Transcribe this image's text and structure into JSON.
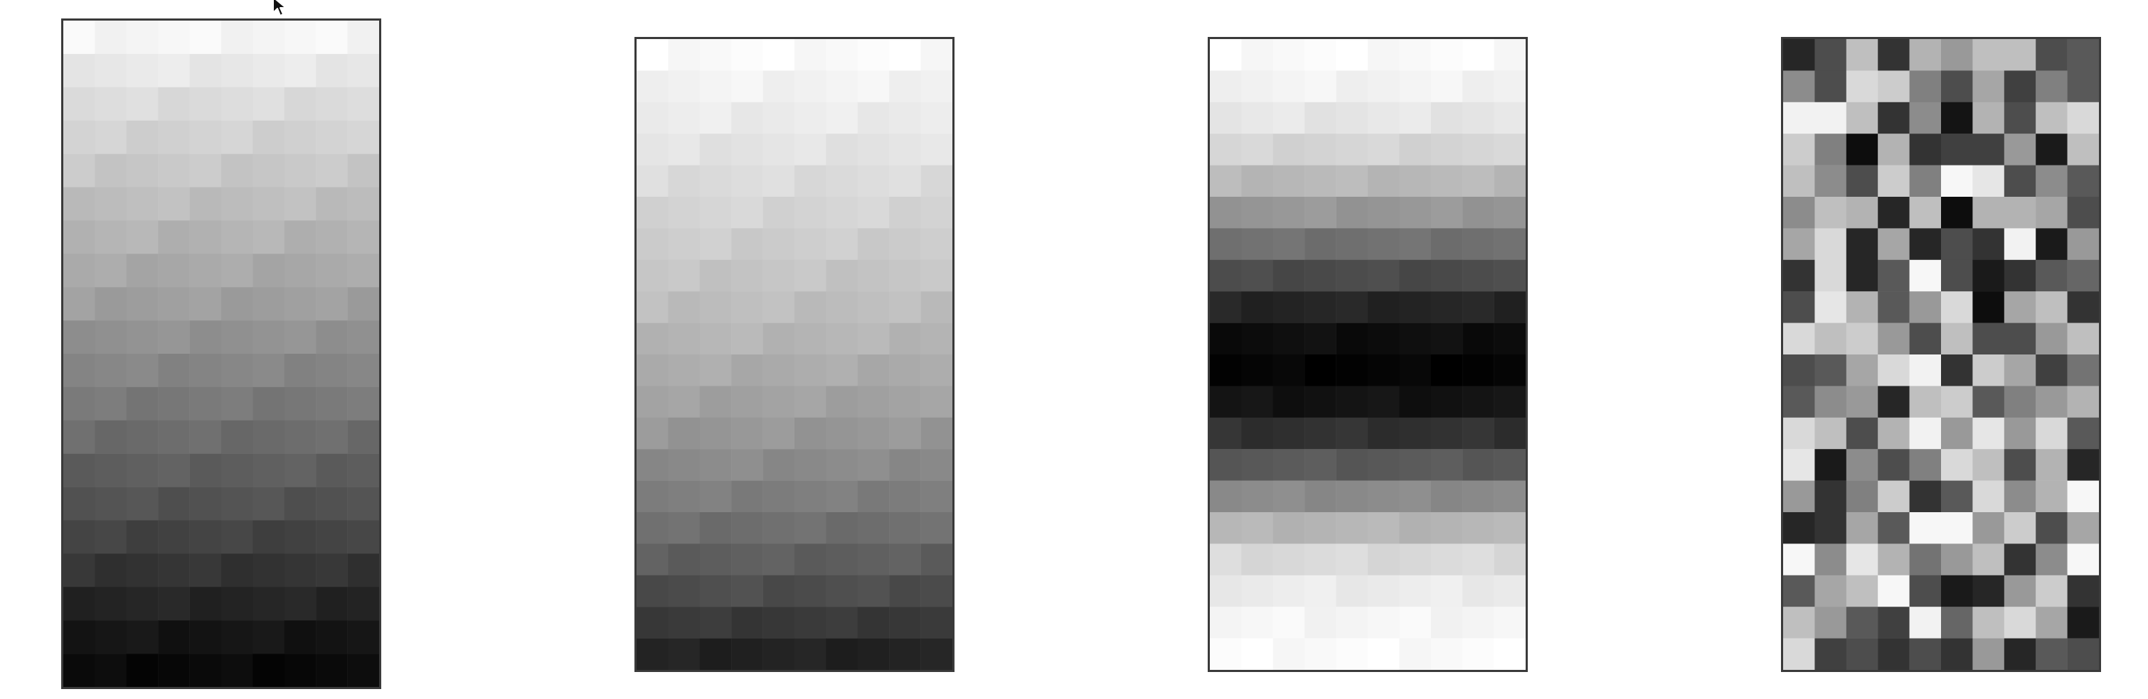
{
  "chart_data": [
    {
      "type": "heatmap",
      "colormap": "grayscale",
      "rows": 20,
      "cols": 10,
      "pattern": "vertical-gradient-light-to-dark",
      "row_levels": [
        0.97,
        0.92,
        0.87,
        0.83,
        0.79,
        0.75,
        0.71,
        0.67,
        0.63,
        0.58,
        0.53,
        0.48,
        0.43,
        0.38,
        0.33,
        0.27,
        0.21,
        0.15,
        0.09,
        0.04
      ]
    },
    {
      "type": "heatmap",
      "colormap": "grayscale",
      "rows": 20,
      "cols": 10,
      "pattern": "vertical-gradient-light-to-dark",
      "row_levels": [
        0.99,
        0.96,
        0.93,
        0.9,
        0.87,
        0.84,
        0.81,
        0.78,
        0.75,
        0.72,
        0.68,
        0.64,
        0.6,
        0.55,
        0.5,
        0.44,
        0.38,
        0.31,
        0.23,
        0.14
      ]
    },
    {
      "type": "heatmap",
      "colormap": "grayscale",
      "rows": 20,
      "cols": 10,
      "pattern": "symmetric-band-dark-center",
      "row_levels": [
        0.99,
        0.96,
        0.91,
        0.84,
        0.73,
        0.6,
        0.45,
        0.3,
        0.15,
        0.06,
        0.02,
        0.08,
        0.2,
        0.36,
        0.55,
        0.72,
        0.86,
        0.93,
        0.97,
        0.99
      ]
    },
    {
      "type": "heatmap",
      "colormap": "grayscale",
      "rows": 20,
      "cols": 10,
      "pattern": "random-noise",
      "cells": [
        [
          0.15,
          0.3,
          0.75,
          0.2,
          0.7,
          0.6,
          0.75,
          0.75,
          0.3,
          0.35
        ],
        [
          0.55,
          0.3,
          0.85,
          0.8,
          0.5,
          0.3,
          0.65,
          0.25,
          0.5,
          0.35
        ],
        [
          0.95,
          0.95,
          0.75,
          0.2,
          0.55,
          0.08,
          0.7,
          0.3,
          0.75,
          0.85
        ],
        [
          0.8,
          0.5,
          0.05,
          0.7,
          0.2,
          0.25,
          0.25,
          0.6,
          0.1,
          0.75
        ],
        [
          0.75,
          0.55,
          0.3,
          0.8,
          0.5,
          0.97,
          0.9,
          0.3,
          0.55,
          0.35
        ],
        [
          0.55,
          0.75,
          0.7,
          0.15,
          0.75,
          0.05,
          0.7,
          0.7,
          0.65,
          0.3
        ],
        [
          0.65,
          0.85,
          0.15,
          0.65,
          0.15,
          0.3,
          0.2,
          0.95,
          0.1,
          0.6
        ],
        [
          0.2,
          0.85,
          0.15,
          0.35,
          0.97,
          0.3,
          0.1,
          0.2,
          0.35,
          0.4
        ],
        [
          0.3,
          0.9,
          0.7,
          0.35,
          0.6,
          0.85,
          0.05,
          0.65,
          0.75,
          0.2
        ],
        [
          0.85,
          0.75,
          0.8,
          0.6,
          0.3,
          0.75,
          0.3,
          0.3,
          0.6,
          0.75
        ],
        [
          0.3,
          0.35,
          0.65,
          0.85,
          0.95,
          0.2,
          0.8,
          0.65,
          0.25,
          0.45
        ],
        [
          0.35,
          0.55,
          0.6,
          0.15,
          0.75,
          0.8,
          0.35,
          0.5,
          0.6,
          0.7
        ],
        [
          0.85,
          0.75,
          0.3,
          0.7,
          0.95,
          0.6,
          0.9,
          0.6,
          0.85,
          0.35
        ],
        [
          0.9,
          0.1,
          0.55,
          0.3,
          0.5,
          0.85,
          0.75,
          0.3,
          0.7,
          0.15
        ],
        [
          0.6,
          0.2,
          0.5,
          0.8,
          0.2,
          0.35,
          0.85,
          0.55,
          0.7,
          0.97
        ],
        [
          0.15,
          0.2,
          0.65,
          0.35,
          0.97,
          0.97,
          0.6,
          0.8,
          0.3,
          0.65
        ],
        [
          0.97,
          0.55,
          0.9,
          0.7,
          0.45,
          0.6,
          0.75,
          0.2,
          0.55,
          0.97
        ],
        [
          0.35,
          0.65,
          0.75,
          0.97,
          0.3,
          0.1,
          0.15,
          0.6,
          0.8,
          0.2
        ],
        [
          0.75,
          0.6,
          0.35,
          0.25,
          0.95,
          0.4,
          0.75,
          0.85,
          0.65,
          0.1
        ],
        [
          0.85,
          0.25,
          0.3,
          0.2,
          0.3,
          0.2,
          0.6,
          0.15,
          0.35,
          0.3
        ]
      ]
    }
  ]
}
